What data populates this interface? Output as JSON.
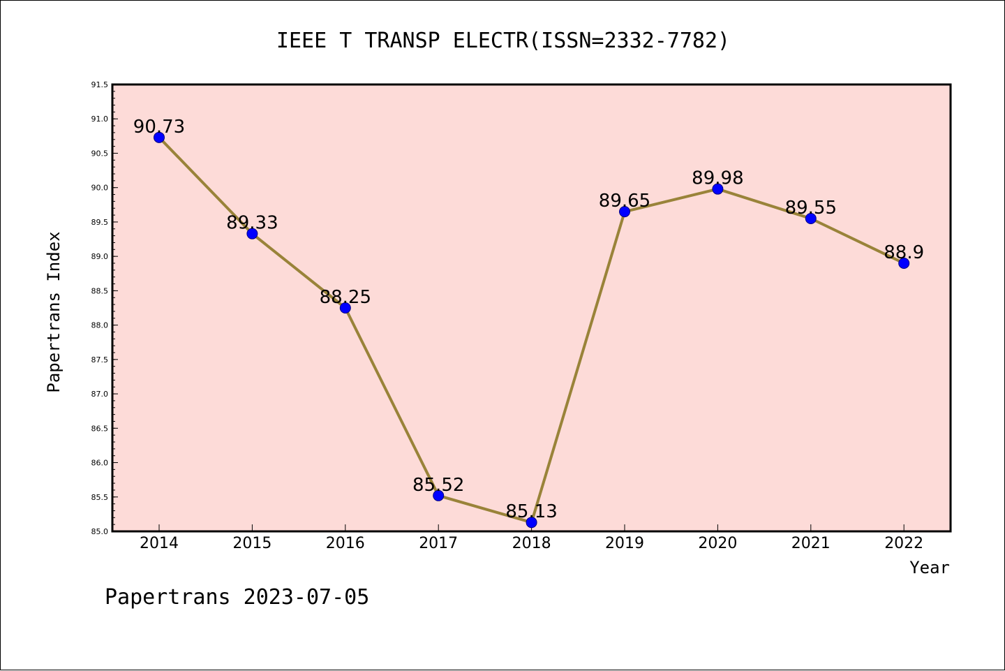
{
  "chart_data": {
    "type": "line",
    "title": "IEEE T TRANSP ELECTR(ISSN=2332-7782)",
    "xlabel": "Year",
    "ylabel": "Papertrans Index",
    "footer": "Papertrans 2023-07-05",
    "categories": [
      "2014",
      "2015",
      "2016",
      "2017",
      "2018",
      "2019",
      "2020",
      "2021",
      "2022"
    ],
    "series": [
      {
        "values": [
          90.73,
          89.33,
          88.25,
          85.52,
          85.13,
          89.65,
          89.98,
          89.55,
          88.9
        ],
        "labels": [
          "90.73",
          "89.33",
          "88.25",
          "85.52",
          "85.13",
          "89.65",
          "89.98",
          "89.55",
          "88.9"
        ]
      }
    ],
    "ylim": [
      85.0,
      91.5
    ],
    "yticks": [
      "85.0",
      "85.5",
      "86.0",
      "86.5",
      "87.0",
      "87.5",
      "88.0",
      "88.5",
      "89.0",
      "89.5",
      "90.0",
      "90.5",
      "91.0",
      "91.5"
    ],
    "grid": false,
    "colors": {
      "plot_background": "#fddbd8",
      "line": "#998339",
      "marker": "#0000ff",
      "marker_edge": "#000080"
    }
  }
}
